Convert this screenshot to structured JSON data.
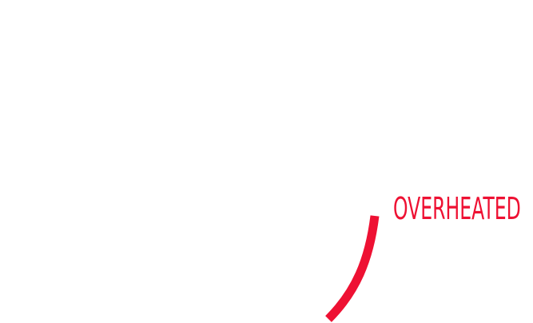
{
  "hud": {
    "status_text": "OVERHEATED",
    "accent_color": "#ee1133",
    "heat_level": 1.0
  }
}
